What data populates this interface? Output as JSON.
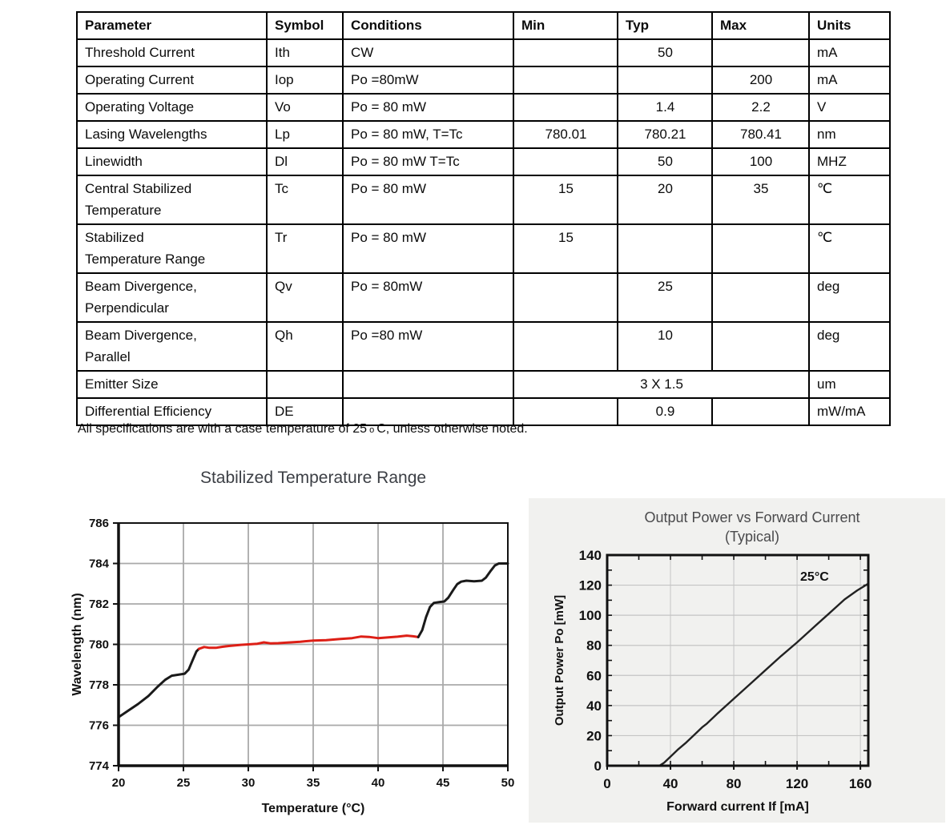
{
  "table": {
    "columns": [
      "Parameter",
      "Symbol",
      "Conditions",
      "Min",
      "Typ",
      "Max",
      "Units"
    ],
    "rows": [
      {
        "param": "Threshold Current",
        "symbol": "Ith",
        "cond": "CW",
        "min": "",
        "typ": "50",
        "max": "",
        "units": "mA"
      },
      {
        "param": "Operating Current",
        "symbol": "Iop",
        "cond": "Po =80mW",
        "min": "",
        "typ": "",
        "max": "200",
        "units": "mA"
      },
      {
        "param": "Operating Voltage",
        "symbol": "Vo",
        "cond": "Po = 80 mW",
        "min": "",
        "typ": "1.4",
        "max": "2.2",
        "units": "V"
      },
      {
        "param": "Lasing Wavelengths",
        "symbol": "Lp",
        "cond": "Po = 80 mW, T=Tc",
        "min": "780.01",
        "typ": "780.21",
        "max": "780.41",
        "units": "nm"
      },
      {
        "param": "Linewidth",
        "symbol": "Dl",
        "cond": "Po = 80 mW T=Tc",
        "min": "",
        "typ": "50",
        "max": "100",
        "units": "MHZ"
      },
      {
        "param": "Central Stabilized\nTemperature",
        "symbol": "Tc",
        "cond": "Po = 80 mW",
        "min": "15",
        "typ": "20",
        "max": "35",
        "units": "℃"
      },
      {
        "param": "Stabilized\nTemperature Range",
        "symbol": "Tr",
        "cond": "Po = 80 mW",
        "min": "15",
        "typ": "",
        "max": "",
        "units": "℃"
      },
      {
        "param": "Beam Divergence,\nPerpendicular",
        "symbol": "Qv",
        "cond": "Po = 80mW",
        "min": "",
        "typ": "25",
        "max": "",
        "units": "deg"
      },
      {
        "param": "Beam Divergence,\nParallel",
        "symbol": "Qh",
        "cond": "Po =80 mW",
        "min": "",
        "typ": "10",
        "max": "",
        "units": "deg"
      },
      {
        "param": "Emitter Size",
        "symbol": "",
        "cond": "",
        "merged": "3 X 1.5",
        "units": "um"
      },
      {
        "param": "Differential Efficiency",
        "symbol": "DE",
        "cond": "",
        "min": "",
        "typ": "0.9",
        "max": "",
        "units": "mW/mA"
      }
    ]
  },
  "footnote": {
    "part1": "All specifications are with a case temperature of 25",
    "degree_o": "o",
    "part2": "C, unless otherwise noted."
  },
  "chart_data": [
    {
      "id": "wavelength-vs-temperature",
      "type": "line",
      "title": "Stabilized Temperature Range",
      "xlabel": "Temperature (°C)",
      "ylabel": "Wavelength (nm)",
      "xlim": [
        20,
        50
      ],
      "ylim": [
        774,
        786
      ],
      "xticks": [
        20,
        25,
        30,
        35,
        40,
        45,
        50
      ],
      "yticks": [
        774,
        776,
        778,
        780,
        782,
        784,
        786
      ],
      "grid": true,
      "grid_color": "#a9a9a9",
      "series": [
        {
          "name": "black-segment-low",
          "color": "#1a1a1a",
          "points": [
            [
              20,
              776.4
            ],
            [
              20.7,
              776.7
            ],
            [
              21.5,
              777.05
            ],
            [
              22.3,
              777.45
            ],
            [
              23,
              777.9
            ],
            [
              23.6,
              778.25
            ],
            [
              24.1,
              778.45
            ],
            [
              24.6,
              778.5
            ],
            [
              25.1,
              778.55
            ],
            [
              25.4,
              778.75
            ],
            [
              25.7,
              779.2
            ],
            [
              26,
              779.65
            ],
            [
              26.2,
              779.78
            ]
          ]
        },
        {
          "name": "stabilized-red-segment",
          "color": "#dd1f16",
          "points": [
            [
              26.2,
              779.78
            ],
            [
              26.6,
              779.87
            ],
            [
              27,
              779.83
            ],
            [
              27.5,
              779.83
            ],
            [
              28,
              779.88
            ],
            [
              28.5,
              779.92
            ],
            [
              29,
              779.95
            ],
            [
              29.5,
              779.98
            ],
            [
              30,
              780.0
            ],
            [
              30.7,
              780.03
            ],
            [
              31.2,
              780.1
            ],
            [
              31.7,
              780.05
            ],
            [
              32.3,
              780.06
            ],
            [
              33,
              780.09
            ],
            [
              34,
              780.13
            ],
            [
              35,
              780.19
            ],
            [
              36,
              780.21
            ],
            [
              37,
              780.26
            ],
            [
              38,
              780.31
            ],
            [
              38.7,
              780.39
            ],
            [
              39.3,
              780.37
            ],
            [
              40,
              780.31
            ],
            [
              40.7,
              780.34
            ],
            [
              41.5,
              780.38
            ],
            [
              42.2,
              780.43
            ],
            [
              42.7,
              780.4
            ],
            [
              43.1,
              780.36
            ]
          ]
        },
        {
          "name": "black-segment-high",
          "color": "#1a1a1a",
          "points": [
            [
              43.1,
              780.36
            ],
            [
              43.4,
              780.7
            ],
            [
              43.7,
              781.35
            ],
            [
              44,
              781.85
            ],
            [
              44.3,
              782.05
            ],
            [
              44.8,
              782.1
            ],
            [
              45.1,
              782.12
            ],
            [
              45.4,
              782.3
            ],
            [
              45.8,
              782.7
            ],
            [
              46.1,
              782.98
            ],
            [
              46.4,
              783.1
            ],
            [
              46.8,
              783.15
            ],
            [
              47.4,
              783.12
            ],
            [
              48,
              783.15
            ],
            [
              48.3,
              783.3
            ],
            [
              48.7,
              783.65
            ],
            [
              49,
              783.9
            ],
            [
              49.3,
              784.0
            ],
            [
              50,
              784.0
            ]
          ]
        }
      ]
    },
    {
      "id": "power-vs-current",
      "type": "line",
      "title": "Output Power vs Forward Current",
      "subtitle": "(Typical)",
      "xlabel": "Forward current If [mA]",
      "ylabel": "Output Power Po [mW]",
      "xlim": [
        0,
        165
      ],
      "ylim": [
        0,
        140
      ],
      "xticks": [
        0,
        40,
        80,
        120,
        160
      ],
      "yticks": [
        0,
        20,
        40,
        60,
        80,
        100,
        120,
        140
      ],
      "minor_xtick_step": 20,
      "minor_ytick_step": 10,
      "grid": true,
      "grid_color": "#c4c4c4",
      "background": "#f1f1ef",
      "annotation": {
        "text": "25°C",
        "x": 122,
        "y": 123
      },
      "series": [
        {
          "name": "25C-curve",
          "color": "#222222",
          "points": [
            [
              33,
              0
            ],
            [
              36,
              2
            ],
            [
              40,
              6
            ],
            [
              45,
              11
            ],
            [
              50,
              15.5
            ],
            [
              55,
              20.5
            ],
            [
              60,
              25.5
            ],
            [
              63,
              28
            ],
            [
              70,
              35
            ],
            [
              80,
              44.5
            ],
            [
              90,
              54
            ],
            [
              100,
              63.5
            ],
            [
              110,
              73
            ],
            [
              120,
              82
            ],
            [
              130,
              91.5
            ],
            [
              140,
              101
            ],
            [
              150,
              110.5
            ],
            [
              158,
              116.5
            ],
            [
              165,
              121
            ]
          ]
        }
      ]
    }
  ]
}
